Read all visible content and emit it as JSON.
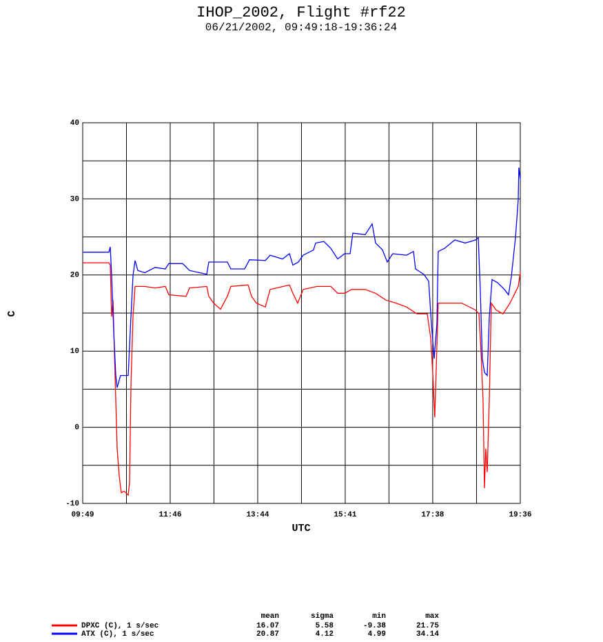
{
  "chart_data": {
    "type": "line",
    "title": "IHOP_2002, Flight #rf22",
    "subtitle": "06/21/2002, 09:49:18-19:36:24",
    "xlabel": "UTC",
    "ylabel": "C",
    "xlim": [
      589.3,
      1176.4
    ],
    "xticks": [
      {
        "value": 589.3,
        "label": "09:49"
      },
      {
        "value": 706.7,
        "label": "11:46"
      },
      {
        "value": 824.1,
        "label": "13:44"
      },
      {
        "value": 941.5,
        "label": "15:41"
      },
      {
        "value": 1058.9,
        "label": "17:38"
      },
      {
        "value": 1176.4,
        "label": "19:36"
      }
    ],
    "ylim": [
      -10,
      40
    ],
    "yticks": [
      -10,
      0,
      10,
      20,
      30,
      40
    ],
    "grid": true,
    "stat_names": [
      "mean",
      "sigma",
      "min",
      "max"
    ],
    "series": [
      {
        "name": "DPXC (C), 1 s/sec",
        "color": "#ff0000",
        "stats": [
          16.07,
          5.58,
          -9.38,
          21.75
        ],
        "x": [
          589.3,
          624.4,
          626.3,
          628.1,
          630.0,
          631.8,
          633.7,
          635.5,
          638.3,
          641.1,
          644.8,
          650.3,
          652.2,
          654.0,
          656.8,
          659.6,
          672.5,
          686.4,
          700.2,
          704.9,
          728.0,
          732.6,
          755.7,
          758.5,
          765.0,
          774.2,
          783.4,
          788.1,
          811.2,
          815.8,
          822.3,
          834.3,
          840.8,
          866.7,
          871.3,
          877.7,
          885.1,
          903.6,
          922.1,
          931.4,
          940.6,
          949.9,
          968.3,
          982.2,
          996.1,
          1009.9,
          1023.8,
          1037.7,
          1051.6,
          1056.2,
          1058.9,
          1061.7,
          1064.5,
          1066.3,
          1079.3,
          1097.8,
          1116.3,
          1120.9,
          1123.7,
          1126.4,
          1128.3,
          1130.1,
          1132.0,
          1134.8,
          1137.5,
          1144.0,
          1153.2,
          1162.5,
          1173.6,
          1176.4
        ],
        "values": [
          21.6,
          21.6,
          21.3,
          14.5,
          16.7,
          9.9,
          3.6,
          -2.8,
          -6.4,
          -8.6,
          -8.4,
          -8.9,
          -7.3,
          5.4,
          14.5,
          18.5,
          18.5,
          18.3,
          18.5,
          17.4,
          17.2,
          18.3,
          18.5,
          17.2,
          16.3,
          15.5,
          17.2,
          18.5,
          18.7,
          17.2,
          16.3,
          15.8,
          18.1,
          18.7,
          17.6,
          16.3,
          18.1,
          18.5,
          18.5,
          17.6,
          17.6,
          18.1,
          18.1,
          17.6,
          16.7,
          16.3,
          15.8,
          14.9,
          14.9,
          11.7,
          7.2,
          1.3,
          10.8,
          16.3,
          16.3,
          16.3,
          15.4,
          14.9,
          9.9,
          3.6,
          -8.0,
          -2.8,
          -5.9,
          3.6,
          16.3,
          15.4,
          14.9,
          16.3,
          18.5,
          20.3
        ]
      },
      {
        "name": "ATX (C), 1 s/sec",
        "color": "#0000ff",
        "stats": [
          20.87,
          4.12,
          4.99,
          34.14
        ],
        "x": [
          589.3,
          624.4,
          626.3,
          628.1,
          630.9,
          633.7,
          635.5,
          640.1,
          646.6,
          650.3,
          654.0,
          656.8,
          659.6,
          663.3,
          672.5,
          686.4,
          700.2,
          704.9,
          723.4,
          732.6,
          746.5,
          755.7,
          758.5,
          783.4,
          788.1,
          806.6,
          813.0,
          834.3,
          840.8,
          857.4,
          866.7,
          871.3,
          878.7,
          885.1,
          899.0,
          901.8,
          912.9,
          922.1,
          931.4,
          940.6,
          948.0,
          951.7,
          968.3,
          977.6,
          982.2,
          991.5,
          997.9,
          1005.3,
          1023.8,
          1033.1,
          1035.8,
          1046.9,
          1053.4,
          1057.1,
          1060.8,
          1064.5,
          1066.3,
          1074.7,
          1088.5,
          1102.4,
          1116.3,
          1120.0,
          1122.7,
          1125.5,
          1128.3,
          1132.0,
          1134.8,
          1138.5,
          1145.8,
          1155.1,
          1160.6,
          1164.3,
          1169.9,
          1173.6,
          1174.5,
          1176.4
        ],
        "values": [
          23.0,
          23.0,
          23.7,
          19.9,
          12.6,
          6.8,
          5.2,
          6.8,
          6.8,
          6.8,
          14.5,
          19.9,
          21.9,
          20.6,
          20.3,
          21.0,
          20.8,
          21.5,
          21.5,
          20.6,
          20.3,
          20.1,
          21.7,
          21.7,
          20.8,
          20.8,
          22.0,
          21.9,
          22.6,
          22.1,
          22.8,
          21.3,
          21.7,
          22.6,
          23.3,
          24.2,
          24.4,
          23.5,
          22.1,
          22.8,
          22.8,
          25.5,
          25.3,
          26.7,
          24.2,
          23.3,
          21.7,
          22.8,
          22.6,
          23.1,
          20.8,
          20.1,
          19.2,
          13.6,
          9.0,
          13.6,
          23.1,
          23.5,
          24.6,
          24.2,
          24.6,
          24.9,
          18.1,
          9.0,
          7.2,
          6.8,
          14.5,
          19.4,
          19.0,
          18.1,
          17.4,
          19.7,
          24.9,
          29.9,
          34.1,
          32.6
        ]
      }
    ]
  }
}
